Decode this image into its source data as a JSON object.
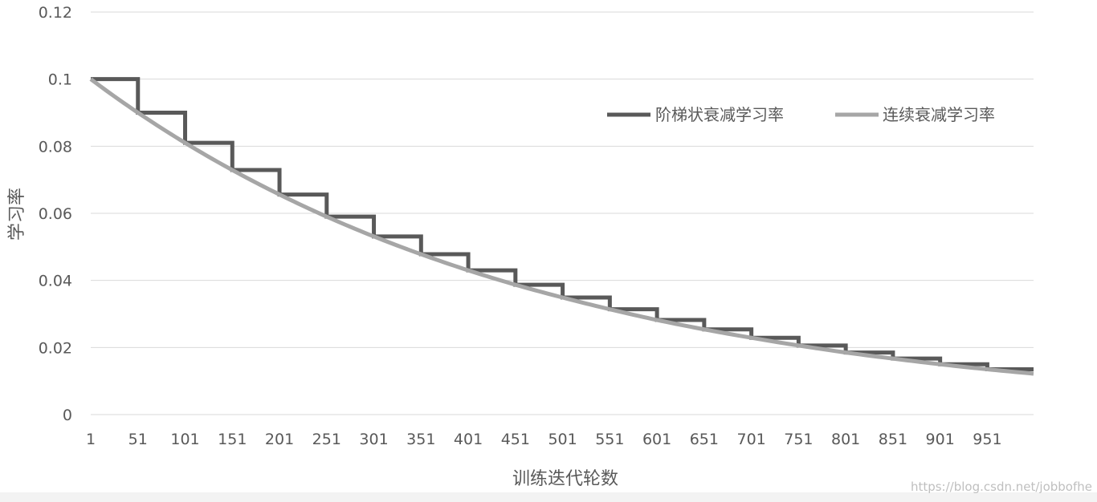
{
  "chart_data": {
    "type": "line",
    "title": "",
    "xlabel": "训练迭代轮数",
    "ylabel": "学习率",
    "xlim": [
      1,
      1000
    ],
    "ylim": [
      0,
      0.12
    ],
    "y_ticks": [
      "0",
      "0.02",
      "0.04",
      "0.06",
      "0.08",
      "0.1",
      "0.12"
    ],
    "x_ticks": [
      "1",
      "51",
      "101",
      "151",
      "201",
      "251",
      "301",
      "351",
      "401",
      "451",
      "501",
      "551",
      "601",
      "651",
      "701",
      "751",
      "801",
      "851",
      "901",
      "951"
    ],
    "grid": "horizontal",
    "legend_position": "top-right",
    "series": [
      {
        "name": "阶梯状衰减学习率",
        "color": "#595959",
        "style": "step",
        "x": [
          1,
          51,
          101,
          151,
          201,
          251,
          301,
          351,
          401,
          451,
          501,
          551,
          601,
          651,
          701,
          751,
          801,
          851,
          901,
          951,
          1000
        ],
        "values": [
          0.1,
          0.09,
          0.081,
          0.0729,
          0.0656,
          0.059,
          0.0531,
          0.0478,
          0.043,
          0.0387,
          0.0349,
          0.0314,
          0.0282,
          0.0254,
          0.0229,
          0.0206,
          0.0185,
          0.0167,
          0.015,
          0.0135,
          0.0135
        ]
      },
      {
        "name": "连续衰减学习率",
        "color": "#a6a6a6",
        "style": "smooth",
        "x": [
          1,
          51,
          101,
          151,
          201,
          251,
          301,
          351,
          401,
          451,
          501,
          551,
          601,
          651,
          701,
          751,
          801,
          851,
          901,
          951,
          1000
        ],
        "values": [
          0.1,
          0.09,
          0.081,
          0.0729,
          0.0656,
          0.059,
          0.0531,
          0.0478,
          0.043,
          0.0387,
          0.0349,
          0.0314,
          0.0282,
          0.0254,
          0.0229,
          0.0206,
          0.0185,
          0.0167,
          0.015,
          0.0135,
          0.0122
        ]
      }
    ]
  },
  "watermark": "https://blog.csdn.net/jobbofhe"
}
